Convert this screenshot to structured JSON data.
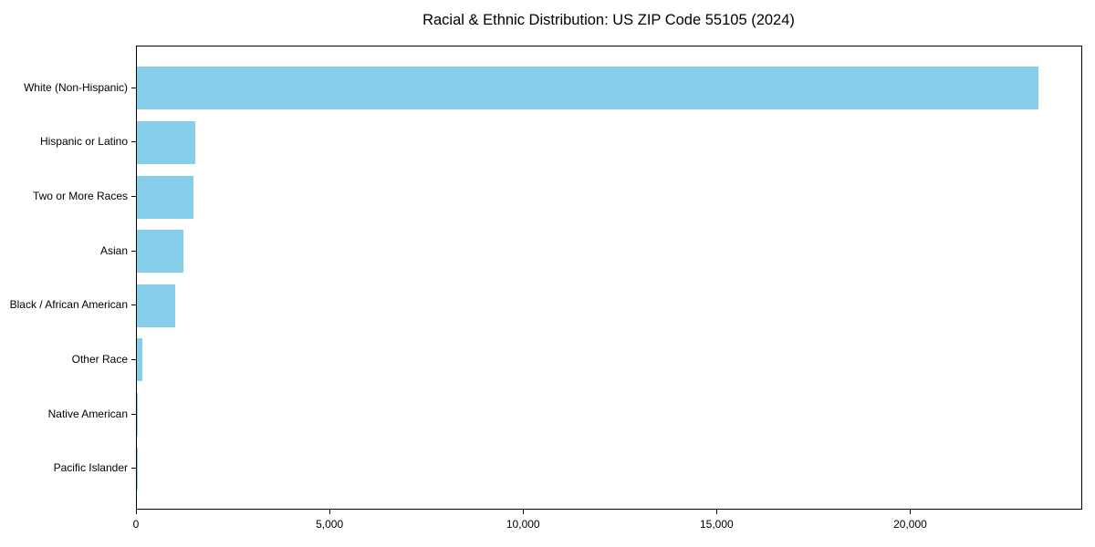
{
  "colors": {
    "bar": "#87CEEB",
    "axis": "#000000",
    "background": "#FFFFFF"
  },
  "chart_data": {
    "type": "bar",
    "orientation": "horizontal",
    "title": "Racial & Ethnic Distribution: US ZIP Code 55105 (2024)",
    "categories": [
      "White (Non-Hispanic)",
      "Hispanic or Latino",
      "Two or More Races",
      "Asian",
      "Black / African American",
      "Other Race",
      "Native American",
      "Pacific Islander"
    ],
    "values": [
      23280,
      1510,
      1450,
      1200,
      990,
      140,
      30,
      5
    ],
    "xlabel": "",
    "ylabel": "",
    "xlim": [
      0,
      24444
    ],
    "x_ticks": [
      0,
      5000,
      10000,
      15000,
      20000
    ],
    "x_tick_labels": [
      "0",
      "5,000",
      "10,000",
      "15,000",
      "20,000"
    ],
    "grid": false,
    "legend": null,
    "bar_color": "#87CEEB"
  }
}
